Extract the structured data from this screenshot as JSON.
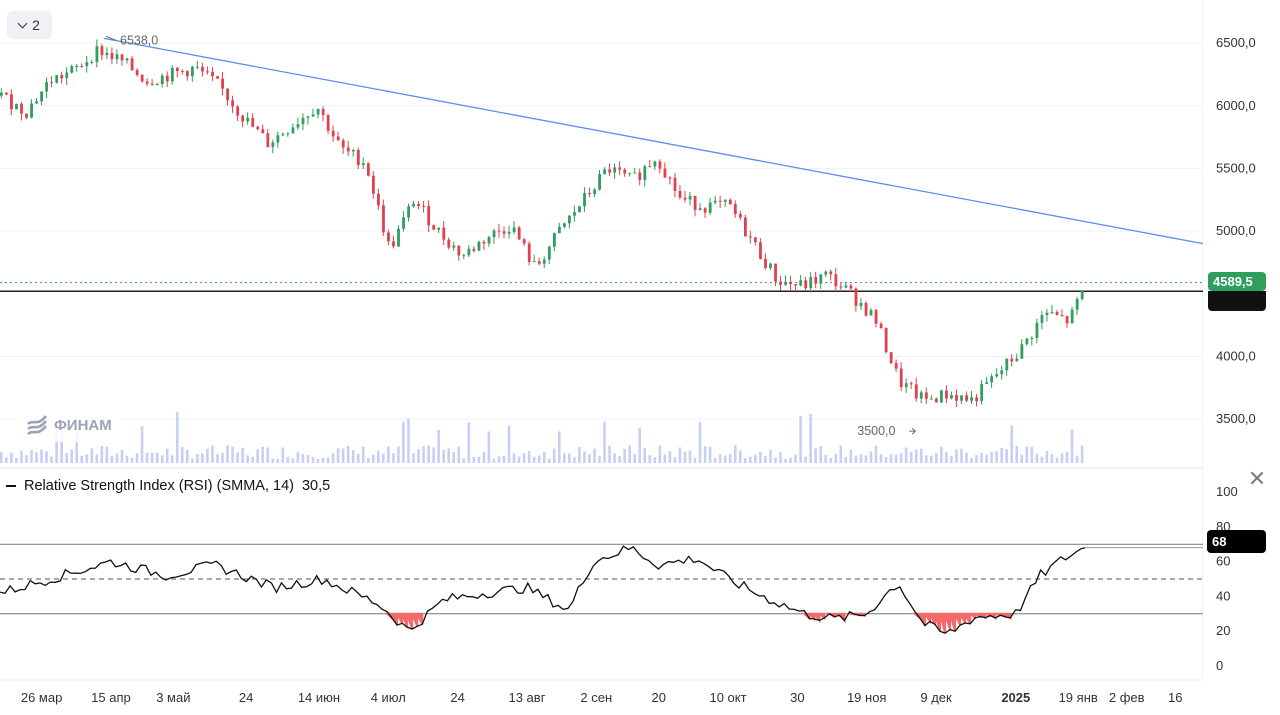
{
  "header": {
    "collapse_count": "2"
  },
  "watermark": {
    "logo_text": "ФИНАМ"
  },
  "price_axis": {
    "ticks": [
      "6500,0",
      "6000,0",
      "5500,0",
      "5000,0",
      "4000,0",
      "3500,0"
    ]
  },
  "price_tags": {
    "current": "4589,5"
  },
  "annotations": {
    "high_label": "6538,0",
    "low_label": "3500,0"
  },
  "rsi_panel": {
    "legend": "Relative Strength Index (RSI) (SMMA, 14)",
    "legend_value": "30,5",
    "current_badge": "68",
    "axis_ticks": [
      "100",
      "80",
      "60",
      "40",
      "20",
      "0"
    ]
  },
  "time_axis": {
    "labels": [
      "26 мар",
      "15 апр",
      "3 май",
      "24",
      "14 июн",
      "4 июл",
      "24",
      "13 авг",
      "2 сен",
      "20",
      "10 окт",
      "30",
      "19 ноя",
      "9 дек",
      "2025",
      "19 янв",
      "2 фев",
      "16"
    ]
  },
  "colors": {
    "up": "#2f9e5f",
    "down": "#e0414d",
    "trendline": "#5b8def",
    "rsi_fill": "#f26a6a",
    "volume": "#c8cff5"
  },
  "chart_data": [
    {
      "type": "candlestick",
      "y_range": [
        3150,
        6780
      ],
      "x_range": [
        "2024-03-14",
        "2025-02-24"
      ],
      "grid": true,
      "last_price": 4589.5,
      "annotations": [
        {
          "label": "6538,0",
          "value": 6538.0,
          "date": "2024-04-13"
        },
        {
          "label": "3500,0",
          "value": 3500.0,
          "date": "2024-12-03"
        }
      ],
      "support_level": 4520,
      "trendline": {
        "from": {
          "date": "2024-04-13",
          "value": 6538
        },
        "to": {
          "date": "2025-02-24",
          "value": 4900
        }
      },
      "x": [
        "2024-03-14",
        "2024-03-21",
        "2024-03-28",
        "2024-04-04",
        "2024-04-11",
        "2024-04-18",
        "2024-04-25",
        "2024-05-02",
        "2024-05-09",
        "2024-05-16",
        "2024-05-23",
        "2024-05-30",
        "2024-06-06",
        "2024-06-13",
        "2024-06-20",
        "2024-06-27",
        "2024-07-04",
        "2024-07-11",
        "2024-07-18",
        "2024-07-25",
        "2024-08-01",
        "2024-08-08",
        "2024-08-15",
        "2024-08-22",
        "2024-08-29",
        "2024-09-05",
        "2024-09-12",
        "2024-09-19",
        "2024-09-26",
        "2024-10-03",
        "2024-10-10",
        "2024-10-17",
        "2024-10-24",
        "2024-10-31",
        "2024-11-07",
        "2024-11-14",
        "2024-11-21",
        "2024-11-28",
        "2024-12-05",
        "2024-12-12",
        "2024-12-19",
        "2024-12-26",
        "2025-01-02",
        "2025-01-09",
        "2025-01-16",
        "2025-01-21"
      ],
      "close": [
        6080,
        5950,
        6200,
        6280,
        6450,
        6350,
        6200,
        6250,
        6300,
        6150,
        5900,
        5700,
        5850,
        6000,
        5650,
        5550,
        4850,
        5250,
        5000,
        4800,
        4950,
        5050,
        4700,
        5000,
        5250,
        5500,
        5400,
        5600,
        5250,
        5200,
        5200,
        4900,
        4600,
        4560,
        4650,
        4500,
        4300,
        3800,
        3650,
        3700,
        3650,
        3850,
        4050,
        4350,
        4280,
        4589.5
      ]
    },
    {
      "type": "line",
      "title": "Relative Strength Index (RSI) (SMMA, 14)",
      "y_range": [
        0,
        100
      ],
      "levels": [
        70,
        50,
        30
      ],
      "current_value": 68,
      "legend_value": 30.5,
      "x": [
        "2024-03-14",
        "2024-04-01",
        "2024-04-15",
        "2024-05-01",
        "2024-05-15",
        "2024-06-01",
        "2024-06-15",
        "2024-07-01",
        "2024-07-10",
        "2024-07-20",
        "2024-08-01",
        "2024-08-13",
        "2024-08-25",
        "2024-09-01",
        "2024-09-12",
        "2024-09-20",
        "2024-10-01",
        "2024-10-10",
        "2024-10-20",
        "2024-11-01",
        "2024-11-10",
        "2024-11-19",
        "2024-11-28",
        "2024-12-05",
        "2024-12-12",
        "2024-12-20",
        "2025-01-01",
        "2025-01-08",
        "2025-01-15",
        "2025-01-21"
      ],
      "values": [
        42,
        52,
        60,
        52,
        58,
        45,
        50,
        36,
        20,
        38,
        42,
        45,
        32,
        60,
        68,
        58,
        62,
        50,
        40,
        30,
        27,
        30,
        48,
        25,
        18,
        28,
        30,
        52,
        62,
        68
      ]
    }
  ]
}
